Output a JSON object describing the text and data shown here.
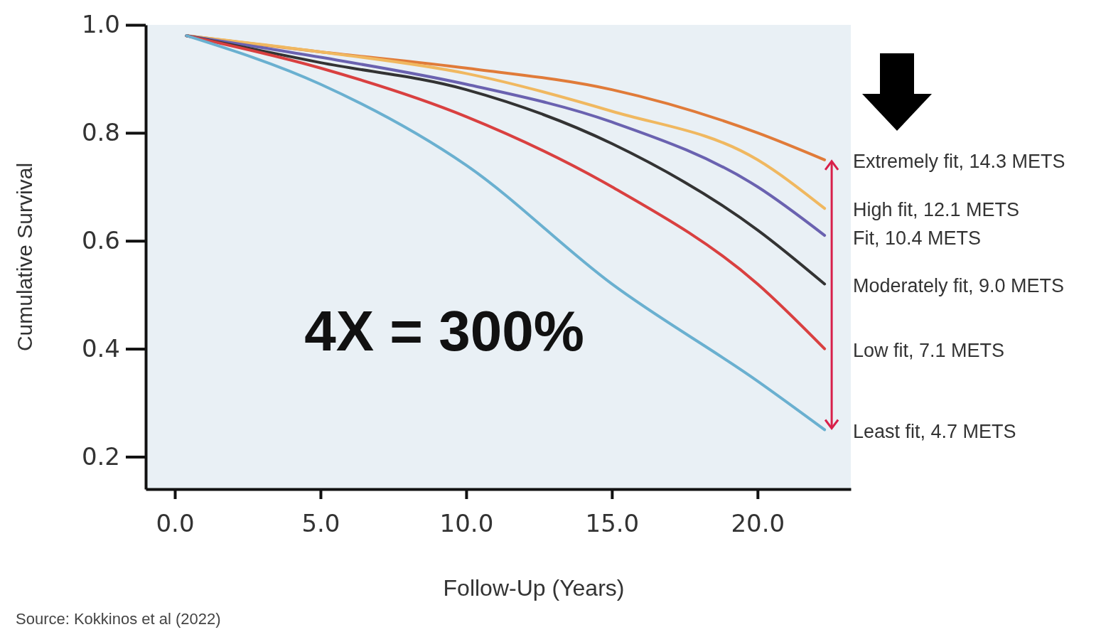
{
  "chart_data": {
    "type": "line",
    "xlabel": "Follow-Up (Years)",
    "ylabel": "Cumulative Survival",
    "xlim": [
      -1,
      23.2
    ],
    "ylim": [
      0.14,
      1.0
    ],
    "xticks": [
      {
        "value": 0,
        "label": "0.0"
      },
      {
        "value": 5,
        "label": "5.0"
      },
      {
        "value": 10,
        "label": "10.0"
      },
      {
        "value": 15,
        "label": "15.0"
      },
      {
        "value": 20,
        "label": "20.0"
      }
    ],
    "yticks": [
      {
        "value": 0.2,
        "label": "0.2"
      },
      {
        "value": 0.4,
        "label": "0.4"
      },
      {
        "value": 0.6,
        "label": "0.6"
      },
      {
        "value": 0.8,
        "label": "0.8"
      },
      {
        "value": 1.0,
        "label": "1.0"
      }
    ],
    "x": [
      0.4,
      5,
      10,
      15,
      20,
      22.3
    ],
    "grid": false,
    "marker": "none",
    "line_style": "solid",
    "series": [
      {
        "name": "Extremely fit, 14.3 METS",
        "color": "#e07b39",
        "values": [
          0.98,
          0.95,
          0.92,
          0.88,
          0.8,
          0.75
        ]
      },
      {
        "name": "High fit, 12.1 METS",
        "color": "#f0b860",
        "values": [
          0.98,
          0.95,
          0.91,
          0.84,
          0.75,
          0.66
        ]
      },
      {
        "name": "Fit, 10.4 METS",
        "color": "#6a62b0",
        "values": [
          0.98,
          0.94,
          0.89,
          0.82,
          0.7,
          0.61
        ]
      },
      {
        "name": "Moderately fit, 9.0 METS",
        "color": "#333333",
        "values": [
          0.98,
          0.93,
          0.88,
          0.78,
          0.62,
          0.52
        ]
      },
      {
        "name": "Low fit, 7.1 METS",
        "color": "#d94040",
        "values": [
          0.98,
          0.92,
          0.83,
          0.7,
          0.52,
          0.4
        ]
      },
      {
        "name": "Least fit, 4.7 METS",
        "color": "#6ab0d0",
        "values": [
          0.98,
          0.89,
          0.74,
          0.52,
          0.34,
          0.25
        ]
      }
    ],
    "annotations": [
      "4X = 300%",
      "Source: Kokkinos et al (2022)"
    ]
  }
}
